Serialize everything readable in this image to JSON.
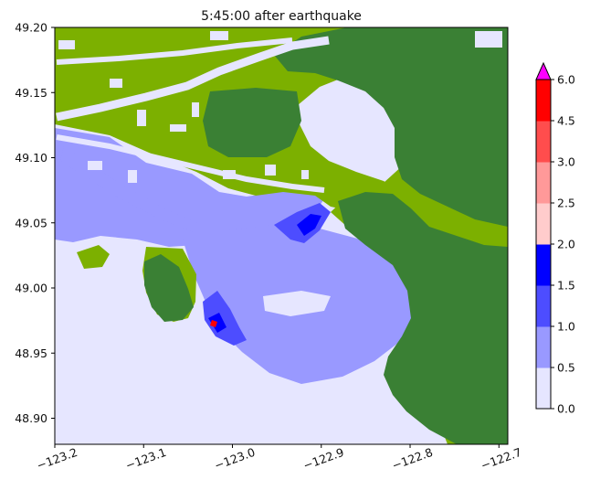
{
  "chart_data": {
    "type": "heatmap",
    "title": "5:45:00 after earthquake",
    "xlabel": "",
    "ylabel": "",
    "xlim": [
      -123.2,
      -122.69
    ],
    "ylim": [
      48.88,
      49.2
    ],
    "xticks": [
      -123.2,
      -123.1,
      -123.0,
      -122.9,
      -122.8,
      -122.7
    ],
    "xtick_labels": [
      "−123.2",
      "−123.1",
      "−123.0",
      "−122.9",
      "−122.8",
      "−122.7"
    ],
    "yticks": [
      48.9,
      48.95,
      49.0,
      49.05,
      49.1,
      49.15,
      49.2
    ],
    "ytick_labels": [
      "48.90",
      "48.95",
      "49.00",
      "49.05",
      "49.10",
      "49.15",
      "49.20"
    ],
    "colorbar": {
      "bounds": [
        0.0,
        0.5,
        1.0,
        1.5,
        2.0,
        2.5,
        3.0,
        4.5,
        6.0
      ],
      "tick_labels": [
        "0.0",
        "0.5",
        "1.0",
        "1.5",
        "2.0",
        "2.5",
        "3.0",
        "4.5",
        "6.0"
      ],
      "colors": [
        "#e6e6ff",
        "#9999ff",
        "#4d4dff",
        "#0000ff",
        "#ffcccc",
        "#ff9999",
        "#ff4d4d",
        "#ff0000"
      ],
      "extend_max_color": "#ff00ff"
    },
    "layers": {
      "land_low": "#7cb000",
      "land_high": "#3a8034",
      "water_dry": "#e6e6ff"
    }
  }
}
